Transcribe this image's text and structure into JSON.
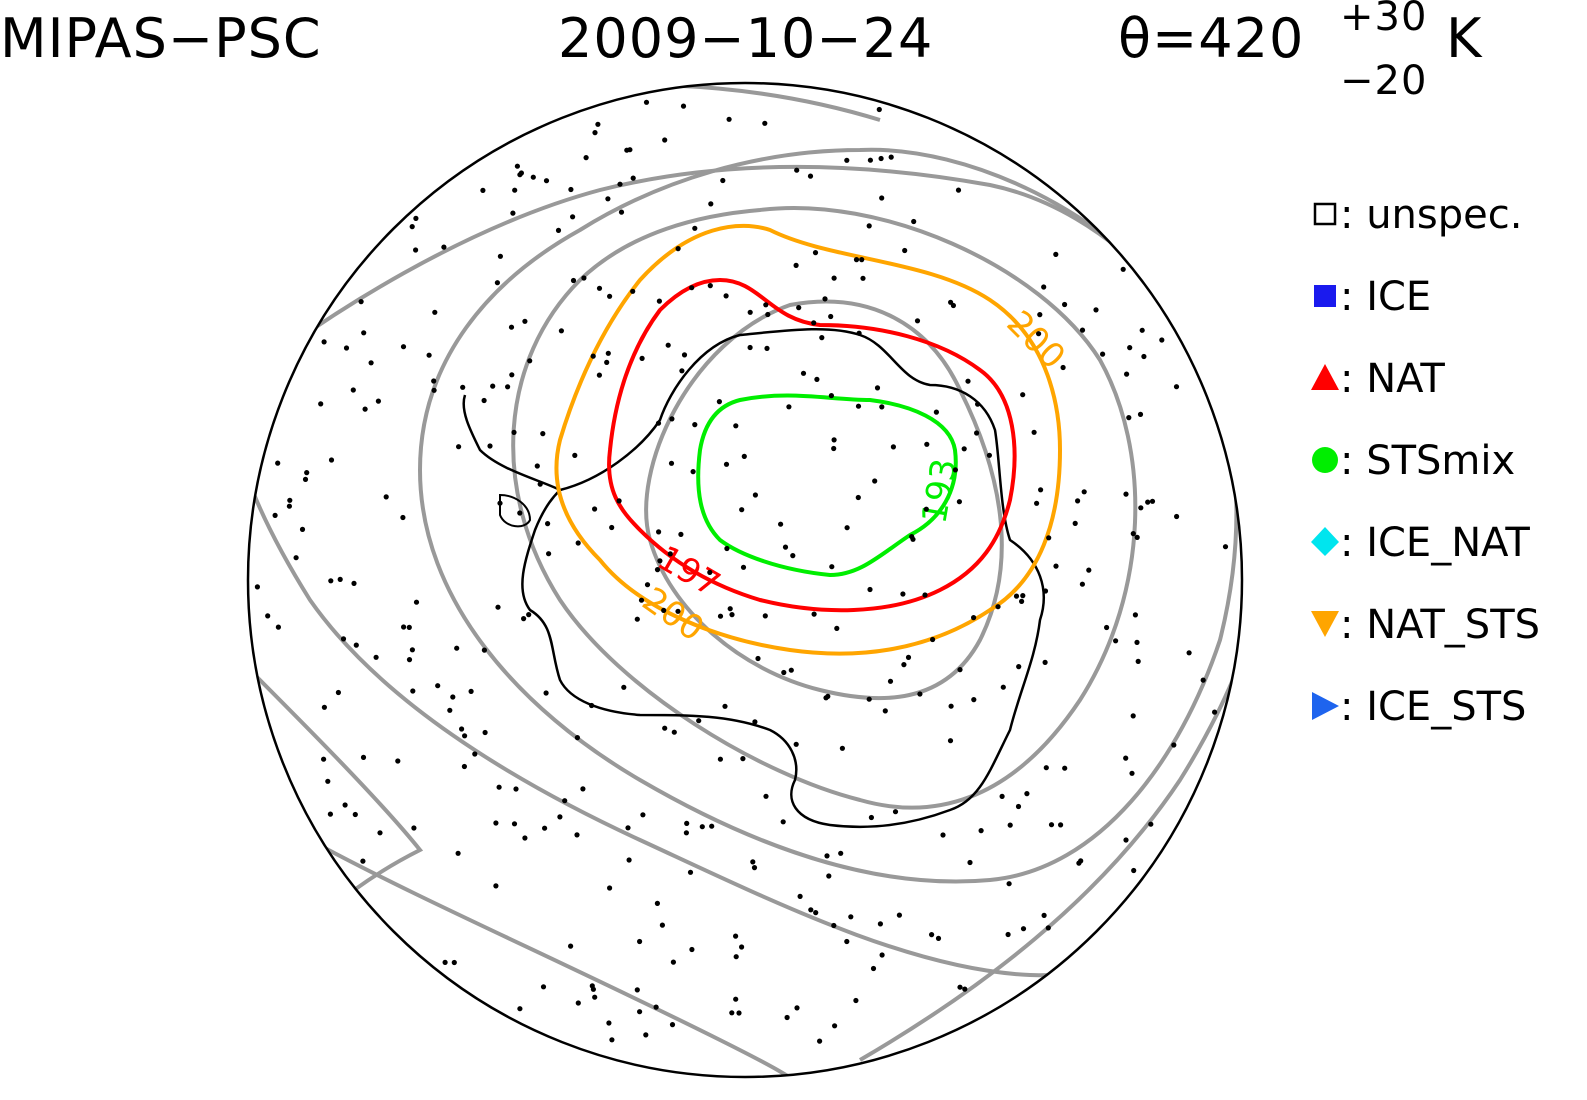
{
  "header": {
    "left": "MIPAS−PSC",
    "date": "2009−10−24",
    "theta_main": "θ=420",
    "theta_sup": "+30",
    "theta_sub": "−20",
    "theta_unit": "K"
  },
  "contours": {
    "labels": [
      {
        "text": "200",
        "color": "#ffa500"
      },
      {
        "text": "197",
        "color": "#ff0000"
      },
      {
        "text": "200",
        "color": "#ffa500"
      },
      {
        "text": "193",
        "color": "#00ee00"
      }
    ],
    "colors": {
      "grey": "#999999",
      "orange": "#ffa500",
      "red": "#ff0000",
      "green": "#00ee00"
    }
  },
  "legend": {
    "items": [
      {
        "label": ": unspec.",
        "icon": "open-square-icon",
        "color": "#000000"
      },
      {
        "label": ": ICE",
        "icon": "square-icon",
        "color": "#1a1aee"
      },
      {
        "label": ": NAT",
        "icon": "triangle-up-icon",
        "color": "#ff0000"
      },
      {
        "label": ": STSmix",
        "icon": "circle-icon",
        "color": "#00ee00"
      },
      {
        "label": ": ICE_NAT",
        "icon": "diamond-icon",
        "color": "#00e5ee"
      },
      {
        "label": ": NAT_STS",
        "icon": "triangle-down-icon",
        "color": "#ffa500"
      },
      {
        "label": ": ICE_STS",
        "icon": "triangle-right-icon",
        "color": "#1e64ee"
      }
    ]
  }
}
